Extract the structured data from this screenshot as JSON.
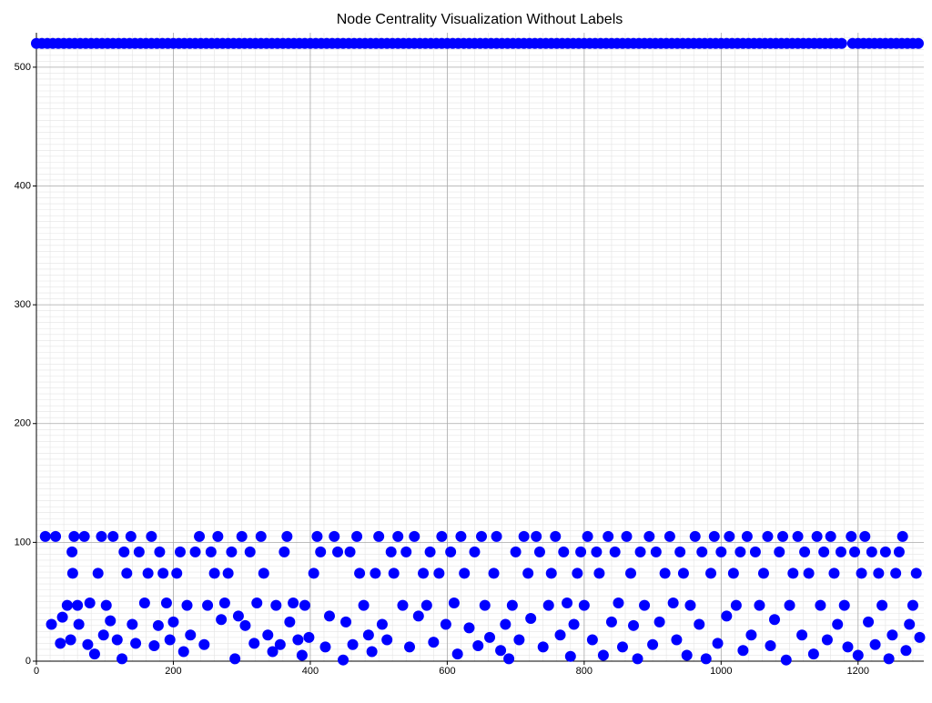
{
  "chart_data": {
    "type": "scatter",
    "title": "Node Centrality Visualization Without Labels",
    "xlim": [
      0,
      1296
    ],
    "ylim": [
      0,
      529
    ],
    "xticks": [
      0,
      200,
      400,
      600,
      800,
      1000,
      1200
    ],
    "yticks": [
      0,
      100,
      200,
      300,
      400,
      500
    ],
    "grid": true,
    "xminor": 20,
    "yminor": 5,
    "series": [
      {
        "color": "#0000ff",
        "x": [
          0,
          8,
          16,
          24,
          32,
          40,
          48,
          56,
          64,
          72,
          80,
          88,
          96,
          104,
          112,
          120,
          128,
          136,
          144,
          152,
          160,
          168,
          176,
          184,
          192,
          200,
          208,
          216,
          224,
          232,
          240,
          248,
          256,
          264,
          272,
          280,
          288,
          296,
          304,
          312,
          320,
          328,
          336,
          344,
          352,
          360,
          368,
          376,
          384,
          392,
          400,
          408,
          416,
          424,
          432,
          440,
          448,
          456,
          464,
          472,
          480,
          488,
          496,
          504,
          512,
          520,
          528,
          536,
          544,
          552,
          560,
          568,
          576,
          584,
          592,
          600,
          608,
          616,
          624,
          632,
          640,
          648,
          656,
          664,
          672,
          680,
          688,
          696,
          704,
          712,
          720,
          728,
          736,
          744,
          752,
          760,
          768,
          776,
          784,
          792,
          800,
          808,
          816,
          824,
          832,
          840,
          848,
          856,
          864,
          872,
          880,
          888,
          896,
          904,
          912,
          920,
          928,
          936,
          944,
          952,
          960,
          968,
          976,
          984,
          992,
          1000,
          1008,
          1016,
          1024,
          1032,
          1040,
          1048,
          1056,
          1064,
          1072,
          1080,
          1088,
          1096,
          1104,
          1112,
          1120,
          1128,
          1136,
          1144,
          1152,
          1160,
          1168,
          1176,
          1192,
          1200,
          1208,
          1216,
          1224,
          1232,
          1240,
          1248,
          1256,
          1264,
          1272,
          1280,
          1288
        ],
        "y": [
          520,
          520,
          520,
          520,
          520,
          520,
          520,
          520,
          520,
          520,
          520,
          520,
          520,
          520,
          520,
          520,
          520,
          520,
          520,
          520,
          520,
          520,
          520,
          520,
          520,
          520,
          520,
          520,
          520,
          520,
          520,
          520,
          520,
          520,
          520,
          520,
          520,
          520,
          520,
          520,
          520,
          520,
          520,
          520,
          520,
          520,
          520,
          520,
          520,
          520,
          520,
          520,
          520,
          520,
          520,
          520,
          520,
          520,
          520,
          520,
          520,
          520,
          520,
          520,
          520,
          520,
          520,
          520,
          520,
          520,
          520,
          520,
          520,
          520,
          520,
          520,
          520,
          520,
          520,
          520,
          520,
          520,
          520,
          520,
          520,
          520,
          520,
          520,
          520,
          520,
          520,
          520,
          520,
          520,
          520,
          520,
          520,
          520,
          520,
          520,
          520,
          520,
          520,
          520,
          520,
          520,
          520,
          520,
          520,
          520,
          520,
          520,
          520,
          520,
          520,
          520,
          520,
          520,
          520,
          520,
          520,
          520,
          520,
          520,
          520,
          520,
          520,
          520,
          520,
          520,
          520,
          520,
          520,
          520,
          520,
          520,
          520,
          520,
          520,
          520,
          520,
          520,
          520,
          520,
          520,
          520,
          520,
          520,
          520,
          520,
          520,
          520,
          520,
          520,
          520,
          520,
          520,
          520,
          520,
          520,
          520
        ]
      },
      {
        "color": "#0000ff",
        "x": [
          13,
          22,
          28,
          35,
          38,
          45,
          50,
          55,
          52,
          53,
          60,
          62,
          70,
          75,
          78,
          85,
          90,
          95,
          98,
          102,
          108,
          112,
          118,
          125,
          128,
          132,
          138,
          140,
          145,
          150,
          158,
          163,
          168,
          172,
          178,
          180,
          185,
          190,
          195,
          200,
          205,
          210,
          215,
          220,
          225,
          232,
          238,
          245,
          250,
          255,
          260,
          265,
          270,
          275,
          280,
          285,
          290,
          295,
          300,
          305,
          312,
          318,
          322,
          328,
          332,
          338,
          345,
          350,
          356,
          362,
          366,
          370,
          375,
          382,
          388,
          392,
          398,
          405,
          410,
          415,
          422,
          428,
          435,
          440,
          448,
          452,
          458,
          462,
          468,
          472,
          478,
          485,
          490,
          495,
          500,
          505,
          512,
          518,
          522,
          528,
          535,
          540,
          545,
          552,
          558,
          565,
          570,
          575,
          580,
          588,
          592,
          598,
          605,
          610,
          615,
          620,
          625,
          632,
          640,
          645,
          650,
          655,
          662,
          668,
          672,
          678,
          685,
          690,
          695,
          700,
          705,
          712,
          718,
          722,
          730,
          735,
          740,
          748,
          752,
          758,
          765,
          770,
          775,
          780,
          785,
          790,
          795,
          800,
          805,
          812,
          818,
          822,
          828,
          835,
          840,
          845,
          850,
          856,
          862,
          868,
          872,
          878,
          882,
          888,
          895,
          900,
          905,
          910,
          918,
          925,
          930,
          935,
          940,
          945,
          950,
          955,
          962,
          968,
          972,
          978,
          985,
          990,
          995,
          1000,
          1008,
          1012,
          1018,
          1022,
          1028,
          1032,
          1038,
          1044,
          1050,
          1056,
          1062,
          1068,
          1072,
          1078,
          1085,
          1090,
          1095,
          1100,
          1105,
          1112,
          1118,
          1122,
          1128,
          1135,
          1140,
          1145,
          1150,
          1155,
          1160,
          1165,
          1170,
          1175,
          1180,
          1185,
          1190,
          1195,
          1200,
          1205,
          1210,
          1215,
          1220,
          1225,
          1230,
          1235,
          1240,
          1245,
          1250,
          1255,
          1260,
          1265,
          1270,
          1275,
          1280,
          1285,
          1290
        ],
        "y": [
          105,
          31,
          105,
          15,
          37,
          47,
          18,
          105,
          92,
          74,
          47,
          31,
          105,
          14,
          49,
          6,
          74,
          105,
          22,
          47,
          34,
          105,
          18,
          2,
          92,
          74,
          105,
          31,
          15,
          92,
          49,
          74,
          105,
          13,
          30,
          92,
          74,
          49,
          18,
          33,
          74,
          92,
          8,
          47,
          22,
          92,
          105,
          14,
          47,
          92,
          74,
          105,
          35,
          49,
          74,
          92,
          2,
          38,
          105,
          30,
          92,
          15,
          49,
          105,
          74,
          22,
          8,
          47,
          14,
          92,
          105,
          33,
          49,
          18,
          5,
          47,
          20,
          74,
          105,
          92,
          12,
          38,
          105,
          92,
          1,
          33,
          92,
          14,
          105,
          74,
          47,
          22,
          8,
          74,
          105,
          31,
          18,
          92,
          74,
          105,
          47,
          92,
          12,
          105,
          38,
          74,
          47,
          92,
          16,
          74,
          105,
          31,
          92,
          49,
          6,
          105,
          74,
          28,
          92,
          13,
          105,
          47,
          20,
          74,
          105,
          9,
          31,
          2,
          47,
          92,
          18,
          105,
          74,
          36,
          105,
          92,
          12,
          47,
          74,
          105,
          22,
          92,
          49,
          4,
          31,
          74,
          92,
          47,
          105,
          18,
          92,
          74,
          5,
          105,
          33,
          92,
          49,
          12,
          105,
          74,
          30,
          2,
          92,
          47,
          105,
          14,
          92,
          33,
          74,
          105,
          49,
          18,
          92,
          74,
          5,
          47,
          105,
          31,
          92,
          2,
          74,
          105,
          15,
          92,
          38,
          105,
          74,
          47,
          92,
          9,
          105,
          22,
          92,
          47,
          74,
          105,
          13,
          35,
          92,
          105,
          1,
          47,
          74,
          105,
          22,
          92,
          74,
          6,
          105,
          47,
          92,
          18,
          105,
          74,
          31,
          92,
          47,
          12,
          105,
          92,
          5,
          74,
          105,
          33,
          92,
          14,
          74,
          47,
          92,
          2,
          22,
          74,
          92,
          105,
          9,
          31,
          47,
          74,
          20
        ]
      }
    ]
  }
}
